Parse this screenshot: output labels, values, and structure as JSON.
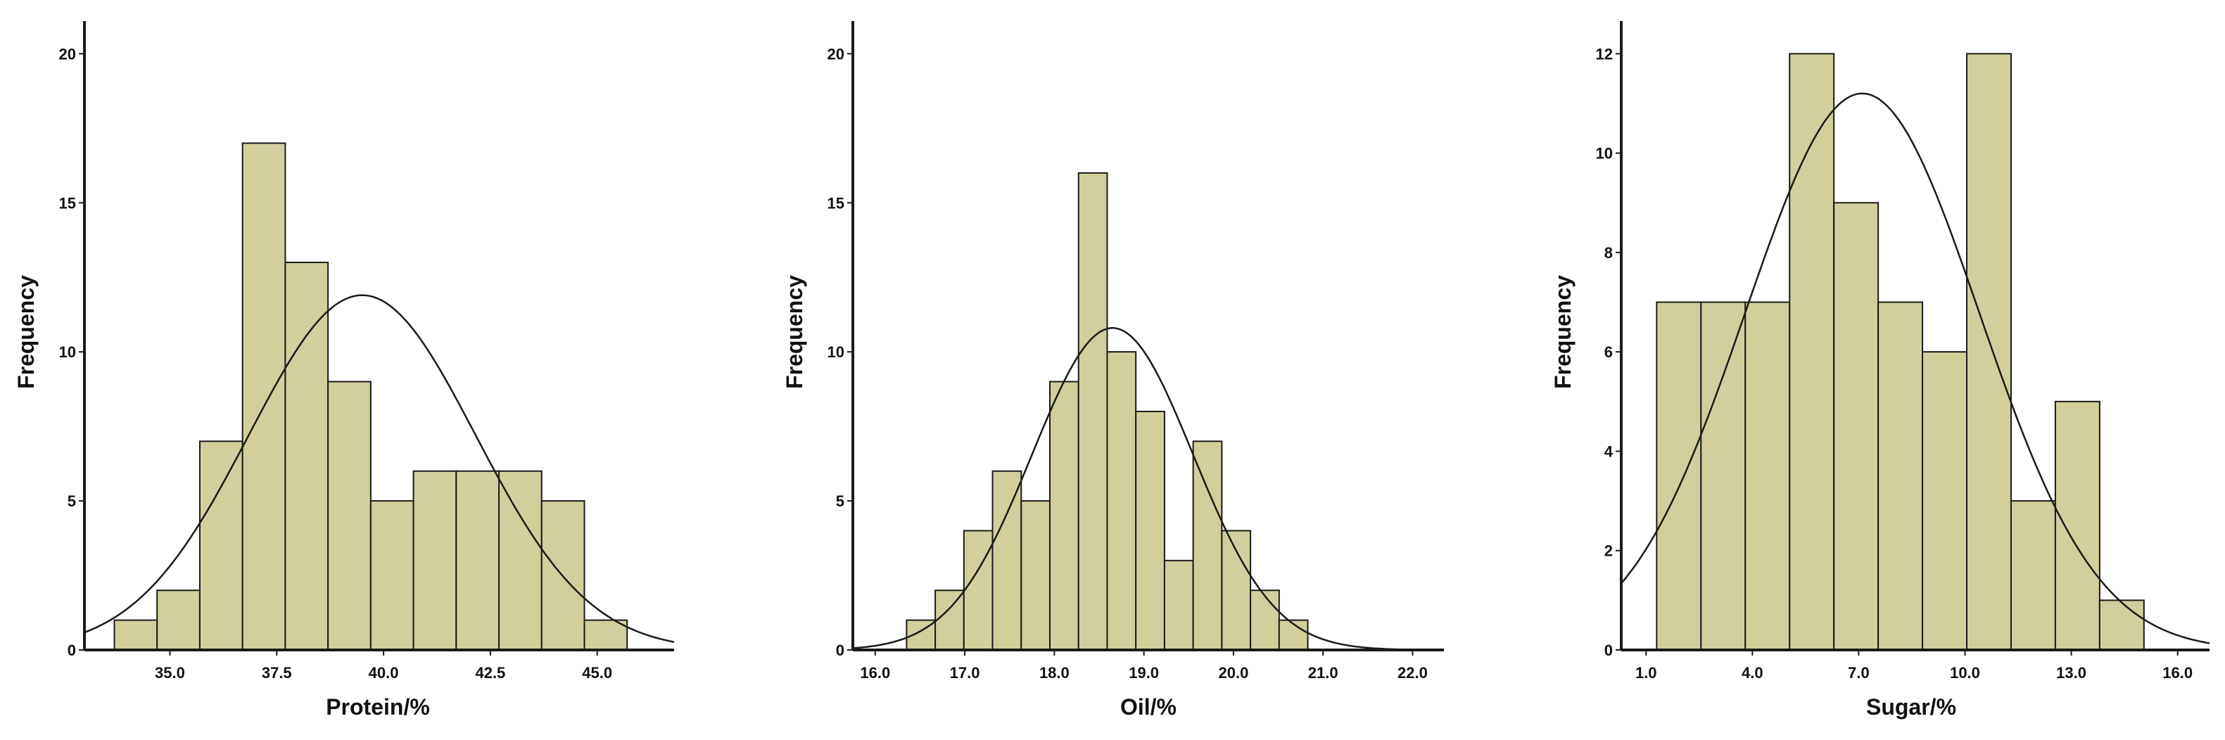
{
  "style": {
    "bar_fill": "#d3cf9c",
    "bar_stroke": "#1a1a1a",
    "curve_color": "#1a1a1a",
    "axis_color": "#1a1a1a"
  },
  "chart_data": [
    {
      "type": "bar",
      "subtype": "histogram_with_normal_curve",
      "xlabel": "Protein/%",
      "ylabel": "Frequency",
      "xlim": [
        33.0,
        46.8
      ],
      "ylim": [
        0,
        21
      ],
      "xticks": [
        35.0,
        37.5,
        40.0,
        42.5,
        45.0
      ],
      "xtick_labels": [
        "35.0",
        "37.5",
        "40.0",
        "42.5",
        "45.0"
      ],
      "yticks": [
        0,
        5,
        10,
        15,
        20
      ],
      "ytick_labels": [
        "0",
        "5",
        "10",
        "15",
        "20"
      ],
      "bins": [
        {
          "start": 33.7,
          "end": 34.7,
          "count": 1
        },
        {
          "start": 34.7,
          "end": 35.7,
          "count": 2
        },
        {
          "start": 35.7,
          "end": 36.7,
          "count": 7
        },
        {
          "start": 36.7,
          "end": 37.7,
          "count": 17
        },
        {
          "start": 37.7,
          "end": 38.7,
          "count": 13
        },
        {
          "start": 38.7,
          "end": 39.7,
          "count": 9
        },
        {
          "start": 39.7,
          "end": 40.7,
          "count": 5
        },
        {
          "start": 40.7,
          "end": 41.7,
          "count": 6
        },
        {
          "start": 41.7,
          "end": 42.7,
          "count": 6
        },
        {
          "start": 42.7,
          "end": 43.7,
          "count": 6
        },
        {
          "start": 43.7,
          "end": 44.7,
          "count": 5
        },
        {
          "start": 44.7,
          "end": 45.7,
          "count": 1
        }
      ],
      "normal_curve": {
        "mean": 39.5,
        "sd": 2.65,
        "peak": 11.9
      },
      "grid": false
    },
    {
      "type": "bar",
      "subtype": "histogram_with_normal_curve",
      "xlabel": "Oil/%",
      "ylabel": "Frequency",
      "xlim": [
        15.75,
        22.35
      ],
      "ylim": [
        0,
        21
      ],
      "xticks": [
        16.0,
        17.0,
        18.0,
        19.0,
        20.0,
        21.0,
        22.0
      ],
      "xtick_labels": [
        "16.0",
        "17.0",
        "18.0",
        "19.0",
        "20.0",
        "21.0",
        "22.0"
      ],
      "yticks": [
        0,
        5,
        10,
        15,
        20
      ],
      "ytick_labels": [
        "0",
        "5",
        "10",
        "15",
        "20"
      ],
      "bins": [
        {
          "start": 16.35,
          "end": 16.67,
          "count": 1
        },
        {
          "start": 16.67,
          "end": 16.99,
          "count": 2
        },
        {
          "start": 16.99,
          "end": 17.31,
          "count": 4
        },
        {
          "start": 17.31,
          "end": 17.63,
          "count": 6
        },
        {
          "start": 17.63,
          "end": 17.95,
          "count": 5
        },
        {
          "start": 17.95,
          "end": 18.27,
          "count": 9
        },
        {
          "start": 18.27,
          "end": 18.59,
          "count": 16
        },
        {
          "start": 18.59,
          "end": 18.91,
          "count": 10
        },
        {
          "start": 18.91,
          "end": 19.23,
          "count": 8
        },
        {
          "start": 19.23,
          "end": 19.55,
          "count": 3
        },
        {
          "start": 19.55,
          "end": 19.87,
          "count": 7
        },
        {
          "start": 19.87,
          "end": 20.19,
          "count": 4
        },
        {
          "start": 20.19,
          "end": 20.51,
          "count": 2
        },
        {
          "start": 20.51,
          "end": 20.83,
          "count": 1
        }
      ],
      "normal_curve": {
        "mean": 18.65,
        "sd": 0.9,
        "peak": 10.8
      },
      "grid": false
    },
    {
      "type": "bar",
      "subtype": "histogram_with_normal_curve",
      "xlabel": "Sugar/%",
      "ylabel": "Frequency",
      "xlim": [
        0.3,
        16.9
      ],
      "ylim": [
        0,
        12.6
      ],
      "xticks": [
        1.0,
        4.0,
        7.0,
        10.0,
        13.0,
        16.0
      ],
      "xtick_labels": [
        "1.0",
        "4.0",
        "7.0",
        "10.0",
        "13.0",
        "16.0"
      ],
      "yticks": [
        0,
        2,
        4,
        6,
        8,
        10,
        12
      ],
      "ytick_labels": [
        "0",
        "2",
        "4",
        "6",
        "8",
        "10",
        "12"
      ],
      "bins": [
        {
          "start": 1.3,
          "end": 2.55,
          "count": 7
        },
        {
          "start": 2.55,
          "end": 3.8,
          "count": 7
        },
        {
          "start": 3.8,
          "end": 5.05,
          "count": 7
        },
        {
          "start": 5.05,
          "end": 6.3,
          "count": 12
        },
        {
          "start": 6.3,
          "end": 7.55,
          "count": 9
        },
        {
          "start": 7.55,
          "end": 8.8,
          "count": 7
        },
        {
          "start": 8.8,
          "end": 10.05,
          "count": 6
        },
        {
          "start": 10.05,
          "end": 11.3,
          "count": 12
        },
        {
          "start": 11.3,
          "end": 12.55,
          "count": 3
        },
        {
          "start": 12.55,
          "end": 13.8,
          "count": 5
        },
        {
          "start": 13.8,
          "end": 15.05,
          "count": 1
        }
      ],
      "normal_curve": {
        "mean": 7.1,
        "sd": 3.3,
        "peak": 11.2
      },
      "grid": false
    }
  ]
}
